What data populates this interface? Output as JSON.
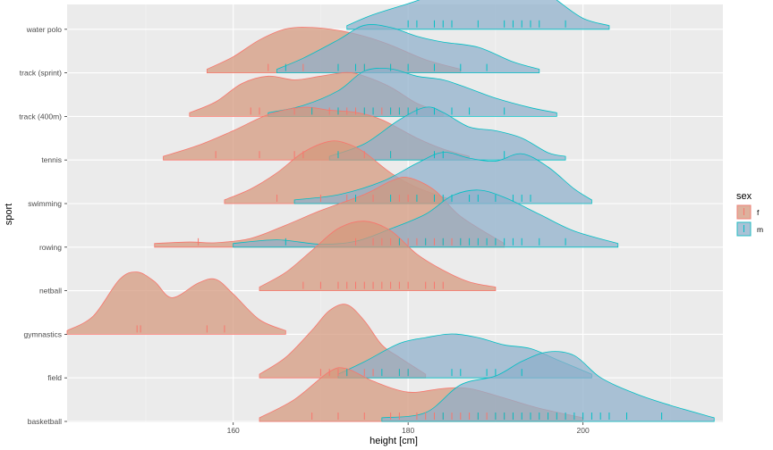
{
  "chart_data": {
    "type": "ridgeline",
    "xlabel": "height [cm]",
    "ylabel": "sport",
    "xlim": [
      141,
      216
    ],
    "x_ticks": [
      160,
      180,
      200
    ],
    "x_tick_labels": [
      "160",
      "180",
      "200"
    ],
    "grid": true,
    "categories": [
      "basketball",
      "field",
      "gymnastics",
      "netball",
      "rowing",
      "swimming",
      "tennis",
      "track (400m)",
      "track (sprint)",
      "water polo"
    ],
    "legend": {
      "title": "sex",
      "position": "right",
      "entries": [
        {
          "label": "f",
          "fill": "#d4977c",
          "stroke": "#F8766D"
        },
        {
          "label": "m",
          "fill": "#8eaecb",
          "stroke": "#00BFC4"
        }
      ]
    },
    "series": [
      {
        "sport": "basketball",
        "sex": "f",
        "range": [
          163,
          200
        ],
        "density": [
          [
            163,
            0.05
          ],
          [
            167,
            0.3
          ],
          [
            171,
            0.68
          ],
          [
            173,
            0.72
          ],
          [
            176,
            0.55
          ],
          [
            180,
            0.4
          ],
          [
            184,
            0.45
          ],
          [
            187,
            0.45
          ],
          [
            191,
            0.32
          ],
          [
            195,
            0.18
          ],
          [
            200,
            0.05
          ]
        ],
        "rug": [
          169,
          172,
          175,
          178,
          179,
          181,
          182,
          183,
          184,
          185,
          186,
          187,
          188,
          189,
          190,
          191,
          192,
          194,
          196
        ]
      },
      {
        "sport": "basketball",
        "sex": "m",
        "range": [
          177,
          215
        ],
        "density": [
          [
            177,
            0.05
          ],
          [
            182,
            0.12
          ],
          [
            186,
            0.5
          ],
          [
            190,
            0.62
          ],
          [
            193,
            0.82
          ],
          [
            196,
            0.95
          ],
          [
            199,
            0.9
          ],
          [
            202,
            0.6
          ],
          [
            206,
            0.38
          ],
          [
            210,
            0.22
          ],
          [
            215,
            0.05
          ]
        ],
        "rug": [
          184,
          188,
          190,
          191,
          192,
          193,
          194,
          195,
          196,
          197,
          198,
          199,
          200,
          201,
          202,
          203,
          205,
          209
        ]
      },
      {
        "sport": "field",
        "sex": "f",
        "range": [
          163,
          182
        ],
        "density": [
          [
            163,
            0.05
          ],
          [
            166,
            0.28
          ],
          [
            169,
            0.65
          ],
          [
            171,
            0.92
          ],
          [
            173,
            1.0
          ],
          [
            175,
            0.78
          ],
          [
            177,
            0.45
          ],
          [
            179,
            0.28
          ],
          [
            182,
            0.05
          ]
        ],
        "rug": [
          170,
          171,
          172,
          173,
          175,
          176,
          179,
          180
        ]
      },
      {
        "sport": "field",
        "sex": "m",
        "range": [
          172,
          201
        ],
        "density": [
          [
            172,
            0.05
          ],
          [
            175,
            0.22
          ],
          [
            179,
            0.47
          ],
          [
            182,
            0.55
          ],
          [
            185,
            0.6
          ],
          [
            188,
            0.55
          ],
          [
            191,
            0.45
          ],
          [
            194,
            0.4
          ],
          [
            197,
            0.25
          ],
          [
            201,
            0.05
          ]
        ],
        "rug": [
          173,
          177,
          179,
          180,
          185,
          186,
          189,
          190,
          193
        ]
      },
      {
        "sport": "gymnastics",
        "sex": "f",
        "range": [
          141,
          166
        ],
        "density": [
          [
            141,
            0.05
          ],
          [
            144,
            0.25
          ],
          [
            147,
            0.75
          ],
          [
            149,
            0.85
          ],
          [
            151,
            0.72
          ],
          [
            153,
            0.5
          ],
          [
            156,
            0.7
          ],
          [
            158,
            0.75
          ],
          [
            160,
            0.55
          ],
          [
            163,
            0.2
          ],
          [
            166,
            0.05
          ]
        ],
        "rug": [
          149,
          149.4,
          157,
          159
        ]
      },
      {
        "sport": "netball",
        "sex": "f",
        "range": [
          163,
          190
        ],
        "density": [
          [
            163,
            0.05
          ],
          [
            166,
            0.25
          ],
          [
            169,
            0.55
          ],
          [
            172,
            0.85
          ],
          [
            175,
            0.95
          ],
          [
            178,
            0.82
          ],
          [
            181,
            0.5
          ],
          [
            184,
            0.28
          ],
          [
            187,
            0.12
          ],
          [
            190,
            0.05
          ]
        ],
        "rug": [
          168,
          170,
          172,
          173,
          174,
          175,
          176,
          177,
          178,
          179,
          180,
          182,
          183,
          184
        ]
      },
      {
        "sport": "rowing",
        "sex": "f",
        "range": [
          151,
          191
        ],
        "density": [
          [
            151,
            0.05
          ],
          [
            155,
            0.07
          ],
          [
            158,
            0.06
          ],
          [
            162,
            0.12
          ],
          [
            166,
            0.3
          ],
          [
            170,
            0.5
          ],
          [
            175,
            0.72
          ],
          [
            178,
            0.9
          ],
          [
            180,
            0.95
          ],
          [
            183,
            0.78
          ],
          [
            186,
            0.42
          ],
          [
            191,
            0.05
          ]
        ],
        "rug": [
          156,
          174,
          176,
          177,
          178,
          179,
          180,
          181,
          182,
          183,
          184,
          185,
          186
        ]
      },
      {
        "sport": "rowing",
        "sex": "m",
        "range": [
          160,
          204
        ],
        "density": [
          [
            160,
            0.05
          ],
          [
            165,
            0.1
          ],
          [
            170,
            0.04
          ],
          [
            174,
            0.08
          ],
          [
            178,
            0.25
          ],
          [
            182,
            0.45
          ],
          [
            185,
            0.7
          ],
          [
            188,
            0.78
          ],
          [
            191,
            0.68
          ],
          [
            195,
            0.45
          ],
          [
            199,
            0.22
          ],
          [
            204,
            0.05
          ]
        ],
        "rug": [
          166,
          179,
          182,
          184,
          186,
          187,
          188,
          189,
          190,
          191,
          192,
          193,
          195,
          198
        ]
      },
      {
        "sport": "swimming",
        "sex": "f",
        "range": [
          159,
          185
        ],
        "density": [
          [
            159,
            0.05
          ],
          [
            162,
            0.2
          ],
          [
            165,
            0.42
          ],
          [
            168,
            0.7
          ],
          [
            171,
            0.85
          ],
          [
            173,
            0.82
          ],
          [
            175,
            0.7
          ],
          [
            178,
            0.42
          ],
          [
            181,
            0.22
          ],
          [
            185,
            0.05
          ]
        ],
        "rug": [
          165,
          170,
          173,
          174,
          176,
          179,
          180
        ]
      },
      {
        "sport": "swimming",
        "sex": "m",
        "range": [
          167,
          201
        ],
        "density": [
          [
            167,
            0.05
          ],
          [
            172,
            0.12
          ],
          [
            177,
            0.3
          ],
          [
            181,
            0.55
          ],
          [
            184,
            0.7
          ],
          [
            187,
            0.62
          ],
          [
            190,
            0.58
          ],
          [
            193,
            0.68
          ],
          [
            196,
            0.5
          ],
          [
            199,
            0.2
          ],
          [
            201,
            0.05
          ]
        ],
        "rug": [
          174,
          178,
          181,
          183,
          184,
          185,
          187,
          188,
          190,
          192,
          193,
          194
        ]
      },
      {
        "sport": "tennis",
        "sex": "f",
        "range": [
          152,
          187
        ],
        "density": [
          [
            152,
            0.05
          ],
          [
            156,
            0.2
          ],
          [
            160,
            0.4
          ],
          [
            164,
            0.62
          ],
          [
            168,
            0.72
          ],
          [
            171,
            0.68
          ],
          [
            174,
            0.65
          ],
          [
            177,
            0.55
          ],
          [
            181,
            0.3
          ],
          [
            184,
            0.15
          ],
          [
            187,
            0.05
          ]
        ],
        "rug": [
          158,
          163,
          167,
          168,
          175,
          178
        ]
      },
      {
        "sport": "tennis",
        "sex": "m",
        "range": [
          171,
          198
        ],
        "density": [
          [
            171,
            0.05
          ],
          [
            175,
            0.22
          ],
          [
            179,
            0.55
          ],
          [
            182,
            0.72
          ],
          [
            184,
            0.65
          ],
          [
            187,
            0.45
          ],
          [
            190,
            0.4
          ],
          [
            193,
            0.3
          ],
          [
            196,
            0.1
          ],
          [
            198,
            0.05
          ]
        ],
        "rug": [
          172,
          178,
          183,
          184,
          191
        ]
      },
      {
        "sport": "track (400m)",
        "sex": "f",
        "range": [
          155,
          184
        ],
        "density": [
          [
            155,
            0.05
          ],
          [
            158,
            0.2
          ],
          [
            161,
            0.45
          ],
          [
            164,
            0.55
          ],
          [
            167,
            0.5
          ],
          [
            170,
            0.55
          ],
          [
            173,
            0.6
          ],
          [
            175,
            0.55
          ],
          [
            178,
            0.4
          ],
          [
            181,
            0.18
          ],
          [
            184,
            0.05
          ]
        ],
        "rug": [
          162,
          163,
          167,
          169,
          171,
          172,
          173,
          174,
          175,
          176,
          177,
          178,
          179
        ]
      },
      {
        "sport": "track (400m)",
        "sex": "m",
        "range": [
          164,
          197
        ],
        "density": [
          [
            164,
            0.05
          ],
          [
            168,
            0.15
          ],
          [
            172,
            0.35
          ],
          [
            175,
            0.62
          ],
          [
            178,
            0.65
          ],
          [
            181,
            0.55
          ],
          [
            184,
            0.5
          ],
          [
            187,
            0.38
          ],
          [
            190,
            0.25
          ],
          [
            194,
            0.12
          ],
          [
            197,
            0.05
          ]
        ],
        "rug": [
          169,
          172,
          175,
          176,
          178,
          179,
          180,
          181,
          183,
          185,
          187,
          191
        ]
      },
      {
        "sport": "track (sprint)",
        "sex": "f",
        "range": [
          157,
          186
        ],
        "density": [
          [
            157,
            0.05
          ],
          [
            160,
            0.22
          ],
          [
            163,
            0.45
          ],
          [
            166,
            0.6
          ],
          [
            169,
            0.62
          ],
          [
            172,
            0.58
          ],
          [
            175,
            0.5
          ],
          [
            178,
            0.38
          ],
          [
            182,
            0.18
          ],
          [
            186,
            0.05
          ]
        ],
        "rug": [
          164,
          168,
          172,
          175,
          178
        ]
      },
      {
        "sport": "track (sprint)",
        "sex": "m",
        "range": [
          165,
          195
        ],
        "density": [
          [
            165,
            0.05
          ],
          [
            168,
            0.2
          ],
          [
            172,
            0.45
          ],
          [
            175,
            0.65
          ],
          [
            178,
            0.62
          ],
          [
            181,
            0.5
          ],
          [
            184,
            0.42
          ],
          [
            188,
            0.35
          ],
          [
            192,
            0.15
          ],
          [
            195,
            0.05
          ]
        ],
        "rug": [
          166,
          172,
          174,
          175,
          178,
          180,
          183,
          186,
          189
        ]
      },
      {
        "sport": "water polo",
        "sex": "m",
        "range": [
          173,
          203
        ],
        "density": [
          [
            173,
            0.05
          ],
          [
            176,
            0.2
          ],
          [
            180,
            0.35
          ],
          [
            184,
            0.5
          ],
          [
            187,
            0.5
          ],
          [
            190,
            0.6
          ],
          [
            192,
            0.72
          ],
          [
            194,
            0.68
          ],
          [
            197,
            0.4
          ],
          [
            200,
            0.15
          ],
          [
            203,
            0.05
          ]
        ],
        "rug": [
          180,
          181,
          183,
          184,
          185,
          188,
          191,
          192,
          193,
          194,
          195,
          198
        ]
      }
    ]
  }
}
